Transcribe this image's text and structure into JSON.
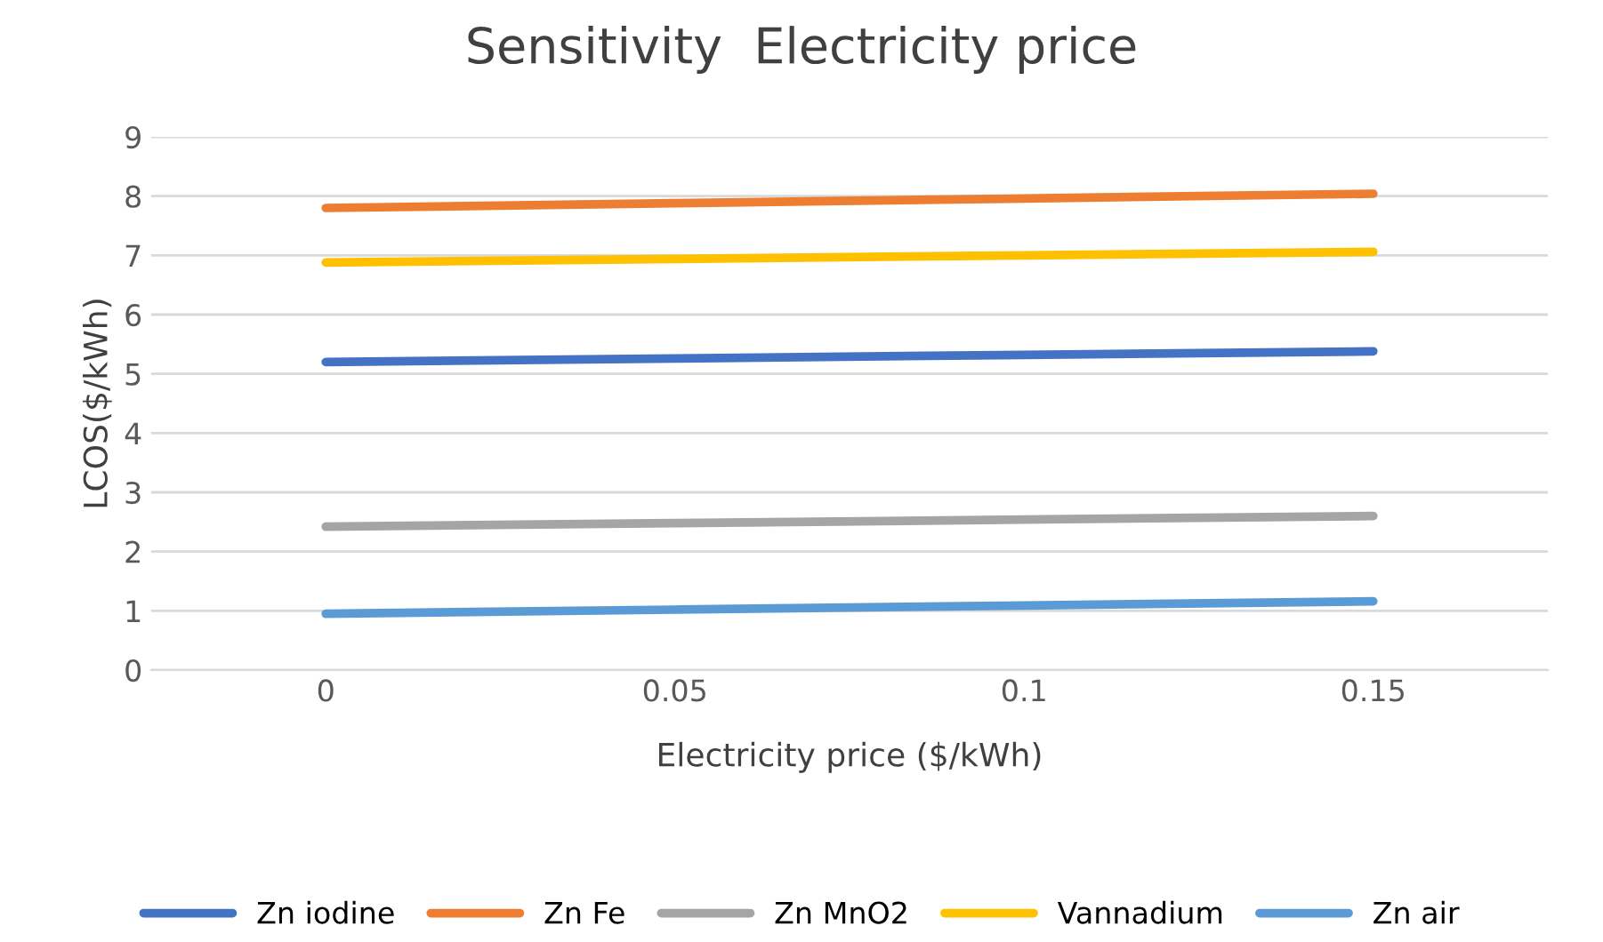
{
  "chart_data": {
    "type": "line",
    "title": "Sensitivity  Electricity price",
    "xlabel": "Electricity price ($/kWh)",
    "ylabel": "LCOS($/kWh)",
    "categories": [
      "0",
      "0.05",
      "0.1",
      "0.15"
    ],
    "series": [
      {
        "name": "Zn iodine",
        "color": "#4472c4",
        "values": [
          5.2,
          5.26,
          5.32,
          5.38
        ]
      },
      {
        "name": "Zn Fe",
        "color": "#ed7d31",
        "values": [
          7.8,
          7.88,
          7.96,
          8.04
        ]
      },
      {
        "name": "Zn MnO2",
        "color": "#a5a5a5",
        "values": [
          2.42,
          2.48,
          2.54,
          2.6
        ]
      },
      {
        "name": "Vannadium",
        "color": "#ffc000",
        "values": [
          6.88,
          6.94,
          7.0,
          7.06
        ]
      },
      {
        "name": "Zn air",
        "color": "#5b9bd5",
        "values": [
          0.95,
          1.02,
          1.09,
          1.16
        ]
      }
    ],
    "ylim": [
      0,
      9
    ],
    "yticks": [
      0,
      1,
      2,
      3,
      4,
      5,
      6,
      7,
      8,
      9
    ],
    "grid": "y",
    "legend": "bottom",
    "marker": "none",
    "line_style": "solid"
  }
}
